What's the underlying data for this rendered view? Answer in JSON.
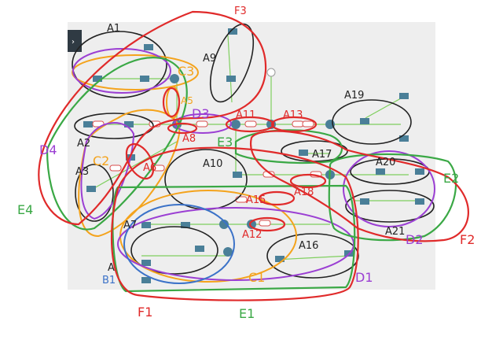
{
  "labels": {
    "A1": "A1",
    "A2": "A2",
    "A3": "A3",
    "A7": "A7",
    "A9": "A9",
    "A10": "A10",
    "A11": "A11",
    "A13": "A13",
    "A16": "A16",
    "A17": "A17",
    "A19": "A19",
    "A20": "A20",
    "A21": "A21",
    "A5": "A5",
    "A6": "A6",
    "A8": "A8",
    "A12": "A12",
    "A15": "A15",
    "A18": "A18",
    "C1": "C1",
    "C2": "C2",
    "C3": "C3",
    "D1": "D1",
    "D2": "D2",
    "D3": "D3",
    "D4": "D4",
    "E1": "E1",
    "E2": "E2",
    "E3": "E3",
    "E4": "E4",
    "F1": "F1",
    "F2": "F2",
    "F3": "F3",
    "B1": "B1"
  },
  "colors": {
    "panel": "#eeeeee",
    "black": "#222222",
    "red": "#e02a2a",
    "green": "#3aa845",
    "purple": "#9b3fd3",
    "orange": "#f4a31c",
    "blue": "#3b72c8",
    "node": "#4a7f98",
    "link": "#7fcf5e",
    "tag": "#d94d4d"
  },
  "sidebar_toggle": "chevron-right-icon"
}
